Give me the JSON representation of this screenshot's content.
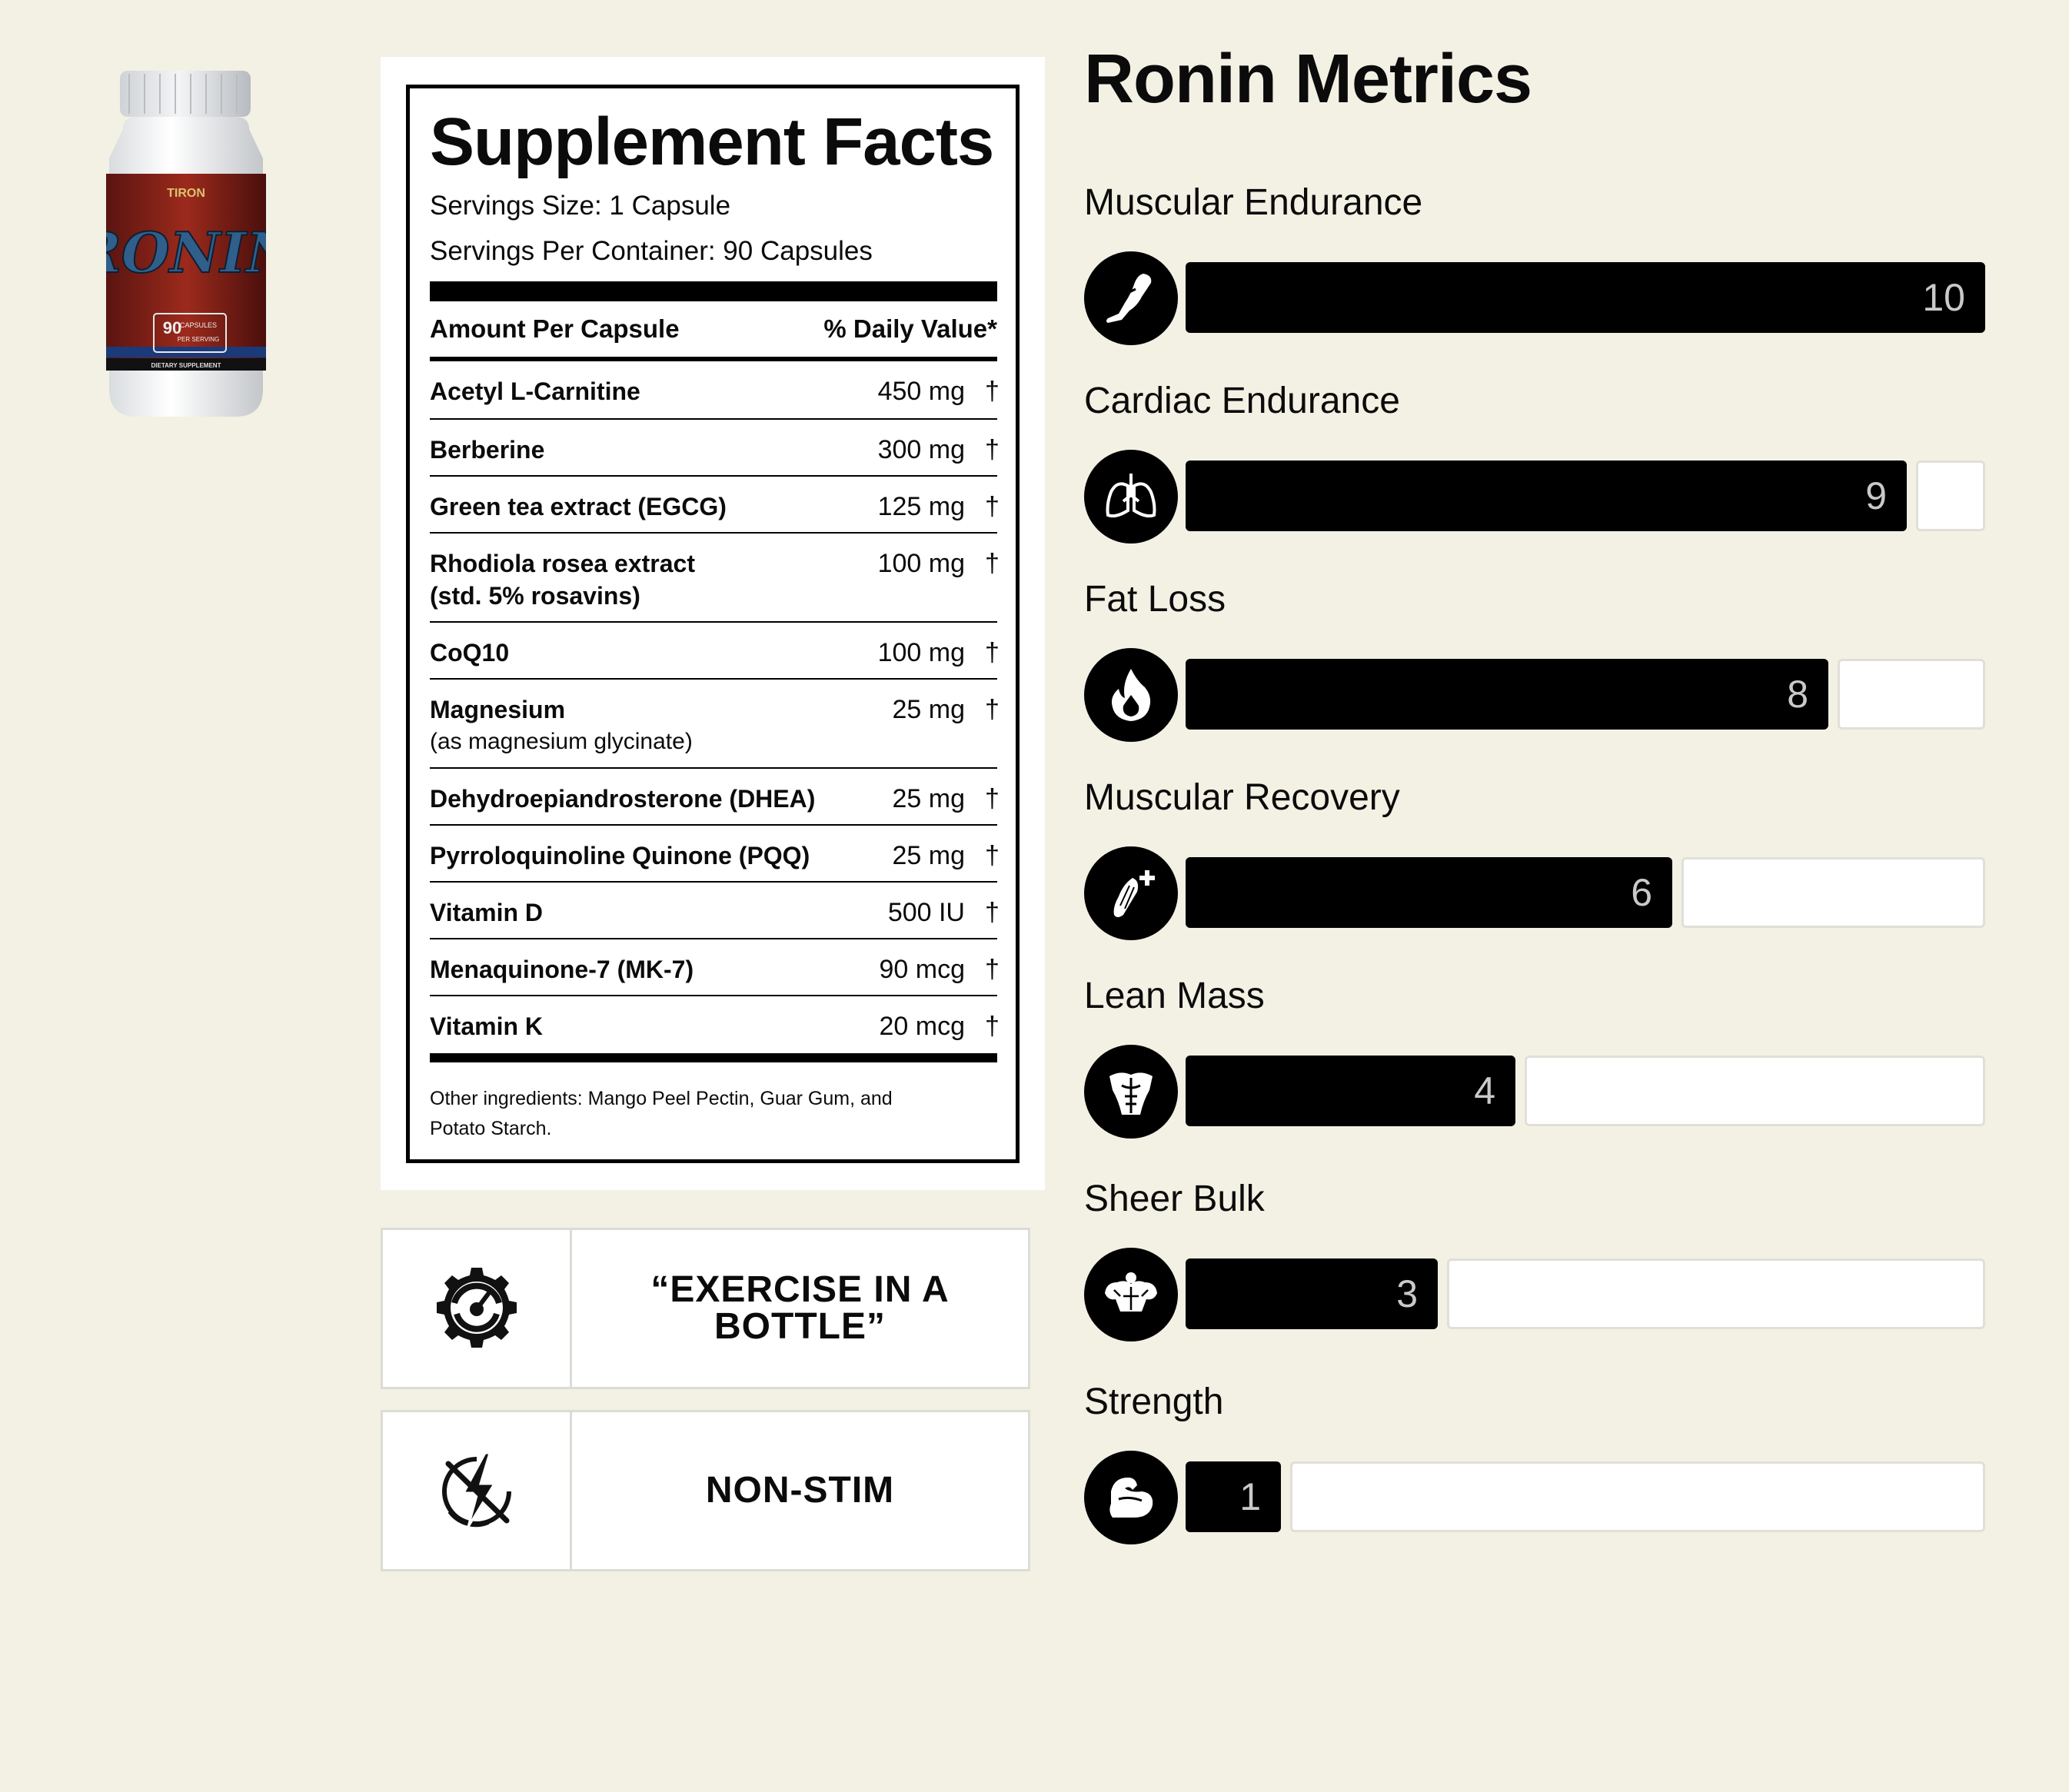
{
  "product": {
    "bottle_label": "RONIN",
    "brand_mark": "TIRON",
    "capsules": "90",
    "capsules_text": "CAPSULES",
    "per_serving": "PER SERVING",
    "footer_text": "DIETARY SUPPLEMENT"
  },
  "facts": {
    "title": "Supplement Facts",
    "serving_size": "Servings Size: 1 Capsule",
    "servings_per_container": "Servings Per Container: 90 Capsules",
    "col_amount": "Amount Per Capsule",
    "col_dv": "% Daily Value*",
    "dagger": "†",
    "rows": [
      {
        "name": "Acetyl L-Carnitine",
        "amount": "450 mg"
      },
      {
        "name": "Berberine",
        "amount": "300 mg"
      },
      {
        "name": "Green tea extract (EGCG)",
        "amount": "125 mg"
      },
      {
        "name": "Rhodiola rosea extract",
        "name2": "(std. 5% rosavins)",
        "amount": "100 mg"
      },
      {
        "name": "CoQ10",
        "amount": "100 mg"
      },
      {
        "name": "Magnesium",
        "sub": "(as magnesium glycinate)",
        "amount": "25 mg"
      },
      {
        "name": "Dehydroepiandrosterone (DHEA)",
        "amount": "25 mg"
      },
      {
        "name": "Pyrroloquinoline Quinone (PQQ)",
        "amount": "25 mg"
      },
      {
        "name": "Vitamin D",
        "amount": "500 IU"
      },
      {
        "name": "Menaquinone-7 (MK-7)",
        "amount": "90 mcg"
      },
      {
        "name": "Vitamin K",
        "amount": "20 mcg"
      }
    ],
    "other_line1": "Other ingredients: Mango Peel Pectin, Guar Gum, and",
    "other_line2": "Potato Starch."
  },
  "features": [
    {
      "line1": "“EXERCISE IN A",
      "line2": "BOTTLE”",
      "icon": "gear-gauge-icon"
    },
    {
      "line1": "NON-STIM",
      "icon": "no-lightning-icon"
    }
  ],
  "metrics": {
    "title": "Ronin Metrics",
    "max": 10,
    "items": [
      {
        "label": "Muscular Endurance",
        "value": "10",
        "score": 10,
        "icon": "running-leg-icon"
      },
      {
        "label": "Cardiac Endurance",
        "value": "9",
        "score": 9,
        "icon": "lungs-icon"
      },
      {
        "label": "Fat Loss",
        "value": "8",
        "score": 8,
        "icon": "flame-icon"
      },
      {
        "label": "Muscular Recovery",
        "value": "6",
        "score": 6,
        "icon": "muscle-plus-icon"
      },
      {
        "label": "Lean Mass",
        "value": "4",
        "score": 4,
        "icon": "torso-icon"
      },
      {
        "label": "Sheer Bulk",
        "value": "3",
        "score": 3,
        "icon": "bodybuilder-icon"
      },
      {
        "label": "Strength",
        "value": "1",
        "score": 1,
        "icon": "flexed-arm-icon"
      }
    ]
  }
}
